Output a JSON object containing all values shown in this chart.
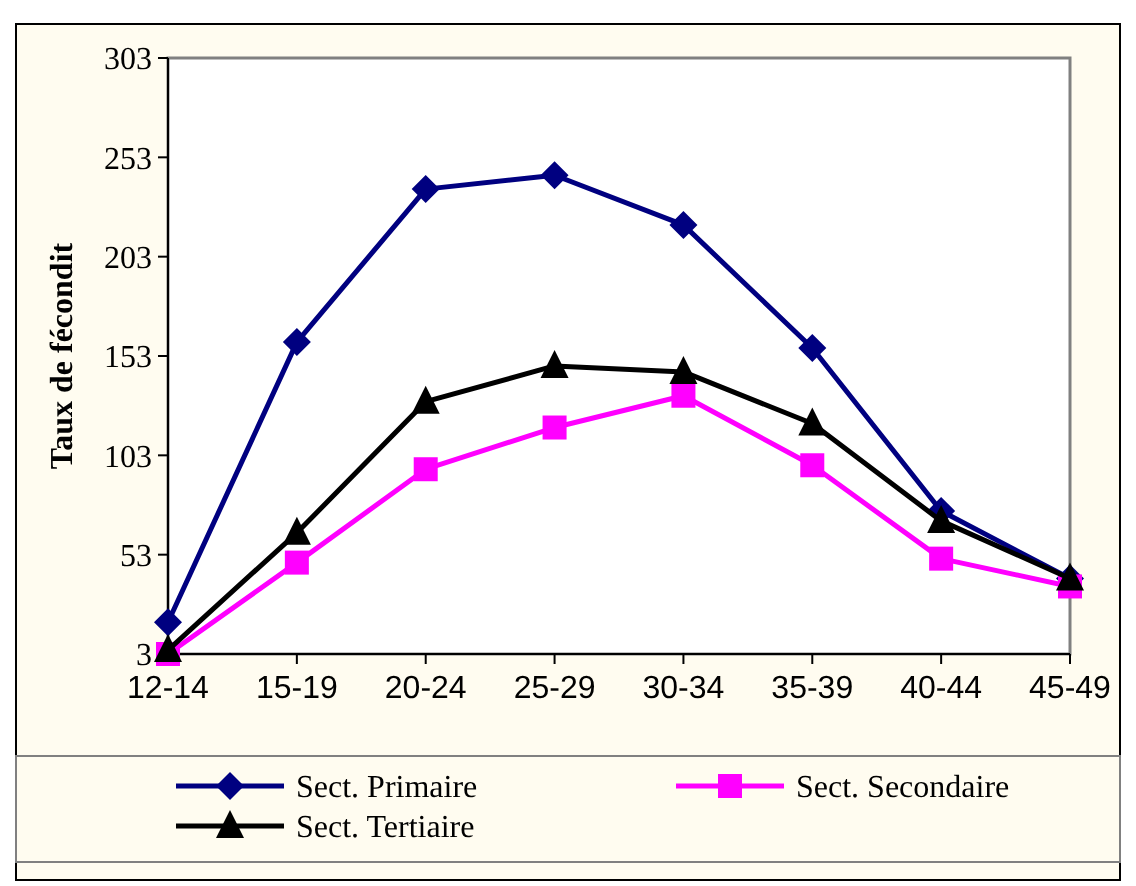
{
  "chart_data": {
    "type": "line",
    "ylabel": "Taux de fécondit",
    "categories": [
      "12-14",
      "15-19",
      "20-24",
      "25-29",
      "30-34",
      "35-39",
      "40-44",
      "45-49"
    ],
    "series": [
      {
        "name": "Sect. Primaire",
        "color": "#000080",
        "marker": "diamond",
        "values": [
          19,
          160,
          237,
          244,
          219,
          157,
          75,
          41
        ]
      },
      {
        "name": "Sect. Secondaire",
        "color": "#ff00ff",
        "marker": "square",
        "values": [
          3,
          49,
          96,
          117,
          133,
          98,
          51,
          37
        ]
      },
      {
        "name": "Sect. Tertiaire",
        "color": "#000000",
        "marker": "triangle",
        "values": [
          5,
          64,
          130,
          148,
          145,
          119,
          70,
          41
        ]
      }
    ],
    "ylim": [
      3,
      303
    ],
    "yticks": [
      3,
      53,
      103,
      153,
      203,
      253,
      303
    ],
    "grid": false,
    "legend": "bottom"
  }
}
